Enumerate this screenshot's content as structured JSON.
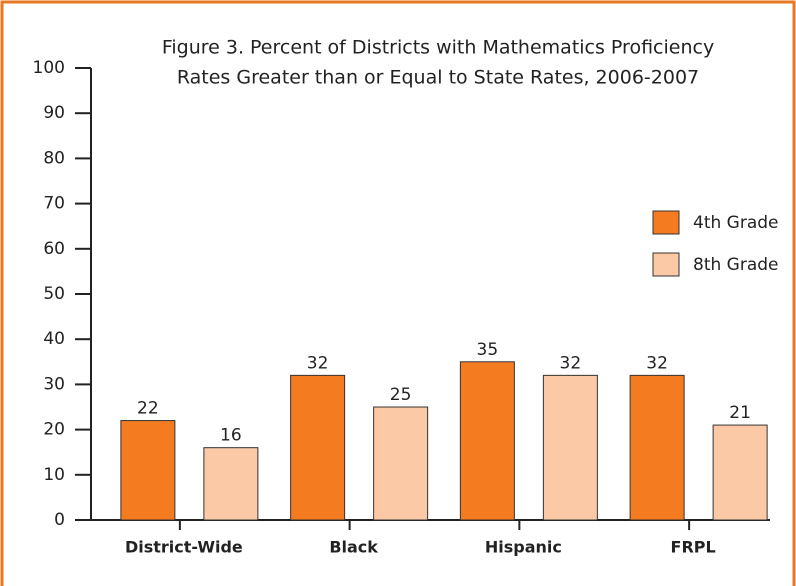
{
  "chart_data": {
    "type": "bar",
    "title": [
      "Figure 3. Percent of Districts with Mathematics Proficiency",
      "Rates Greater than or Equal to State Rates, 2006-2007"
    ],
    "categories": [
      "District-Wide",
      "Black",
      "Hispanic",
      "FRPL"
    ],
    "series": [
      {
        "name": "4th Grade",
        "color": "#f47b20",
        "values": [
          22,
          32,
          35,
          32
        ]
      },
      {
        "name": "8th Grade",
        "color": "#fbc9a5",
        "values": [
          16,
          25,
          32,
          21
        ]
      }
    ],
    "ylim": [
      0,
      100
    ],
    "yticks": [
      0,
      10,
      20,
      30,
      40,
      50,
      60,
      70,
      80,
      90,
      100
    ],
    "legend": "right"
  }
}
